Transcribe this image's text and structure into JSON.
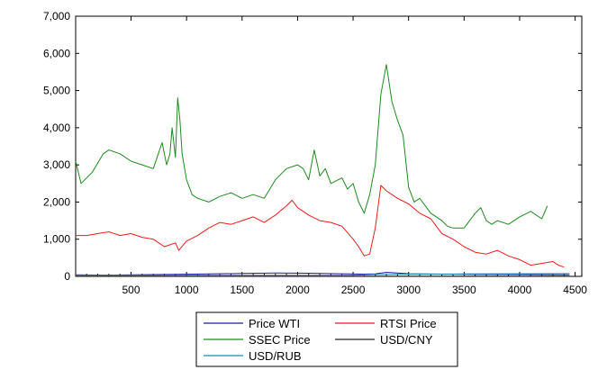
{
  "chart_data": {
    "type": "line",
    "title": "",
    "xlabel": "",
    "ylabel": "",
    "xlim": [
      1,
      4560
    ],
    "ylim": [
      0,
      7000
    ],
    "x_ticks": [
      500,
      1000,
      1500,
      2000,
      2500,
      3000,
      3500,
      4000,
      4500
    ],
    "x_tick_labels": [
      "500",
      "1000",
      "1500",
      "2000",
      "2500",
      "3000",
      "3500",
      "4000",
      "4500"
    ],
    "y_ticks": [
      0,
      1000,
      2000,
      3000,
      4000,
      5000,
      6000,
      7000
    ],
    "y_tick_labels": [
      "0",
      "1,000",
      "2,000",
      "3,000",
      "4,000",
      "5,000",
      "6,000",
      "7,000"
    ],
    "grid": false,
    "legend_position": "bottom-center",
    "series": [
      {
        "name": "Price WTI",
        "color": "#1a1aa6",
        "x": [
          1,
          300,
          600,
          900,
          1200,
          1500,
          1800,
          2100,
          2400,
          2600,
          2700,
          2800,
          2900,
          3000,
          3300,
          3600,
          3900,
          4200,
          4450
        ],
        "y": [
          40,
          35,
          45,
          55,
          65,
          80,
          90,
          85,
          70,
          60,
          65,
          110,
          90,
          70,
          60,
          55,
          50,
          45,
          40
        ]
      },
      {
        "name": "RTSI Price",
        "color": "#e81c1c",
        "x": [
          1,
          100,
          200,
          300,
          400,
          500,
          600,
          700,
          800,
          900,
          930,
          1000,
          1100,
          1200,
          1300,
          1400,
          1500,
          1600,
          1700,
          1800,
          1900,
          1950,
          2000,
          2100,
          2200,
          2300,
          2400,
          2500,
          2550,
          2600,
          2650,
          2700,
          2750,
          2800,
          2900,
          3000,
          3100,
          3200,
          3300,
          3400,
          3500,
          3600,
          3700,
          3800,
          3900,
          4000,
          4100,
          4200,
          4300,
          4350,
          4400
        ],
        "y": [
          1100,
          1100,
          1150,
          1200,
          1100,
          1150,
          1050,
          1000,
          800,
          900,
          700,
          950,
          1100,
          1300,
          1450,
          1400,
          1500,
          1600,
          1450,
          1650,
          1900,
          2050,
          1850,
          1650,
          1500,
          1450,
          1350,
          1000,
          800,
          550,
          600,
          1300,
          2450,
          2300,
          2100,
          1950,
          1700,
          1550,
          1150,
          1000,
          800,
          650,
          600,
          700,
          550,
          450,
          300,
          350,
          400,
          300,
          250
        ]
      },
      {
        "name": "SSEC Price",
        "color": "#1f8a1f",
        "x": [
          1,
          50,
          150,
          250,
          300,
          400,
          500,
          600,
          700,
          780,
          820,
          850,
          870,
          900,
          920,
          940,
          960,
          1000,
          1050,
          1100,
          1200,
          1300,
          1400,
          1500,
          1600,
          1700,
          1800,
          1900,
          2000,
          2050,
          2100,
          2150,
          2200,
          2250,
          2300,
          2400,
          2450,
          2500,
          2550,
          2600,
          2650,
          2700,
          2750,
          2800,
          2850,
          2900,
          2950,
          3000,
          3050,
          3100,
          3200,
          3300,
          3350,
          3400,
          3500,
          3600,
          3650,
          3700,
          3750,
          3800,
          3900,
          4000,
          4100,
          4200,
          4250
        ],
        "y": [
          3100,
          2500,
          2800,
          3300,
          3400,
          3300,
          3100,
          3000,
          2900,
          3600,
          3000,
          3300,
          4000,
          3200,
          4800,
          4200,
          3300,
          2600,
          2200,
          2100,
          2000,
          2150,
          2250,
          2100,
          2200,
          2100,
          2600,
          2900,
          3000,
          2900,
          2600,
          3400,
          2700,
          2900,
          2500,
          2650,
          2350,
          2500,
          2000,
          1700,
          2200,
          3000,
          4900,
          5700,
          4700,
          4200,
          3800,
          2400,
          2000,
          2100,
          1700,
          1500,
          1350,
          1300,
          1300,
          1700,
          1850,
          1500,
          1400,
          1500,
          1400,
          1600,
          1750,
          1550,
          1900
        ]
      },
      {
        "name": "USD/CNY",
        "color": "#222222",
        "x": [
          1,
          500,
          1000,
          1500,
          2000,
          2500,
          3000,
          3500,
          4000,
          4450
        ],
        "y": [
          8,
          8,
          7,
          7,
          6,
          6,
          6,
          7,
          7,
          7
        ]
      },
      {
        "name": "USD/RUB",
        "color": "#1a86b3",
        "x": [
          1,
          500,
          1000,
          1500,
          2000,
          2500,
          2700,
          3000,
          3500,
          4000,
          4450
        ],
        "y": [
          28,
          29,
          30,
          31,
          30,
          32,
          50,
          60,
          65,
          70,
          75
        ]
      }
    ]
  }
}
